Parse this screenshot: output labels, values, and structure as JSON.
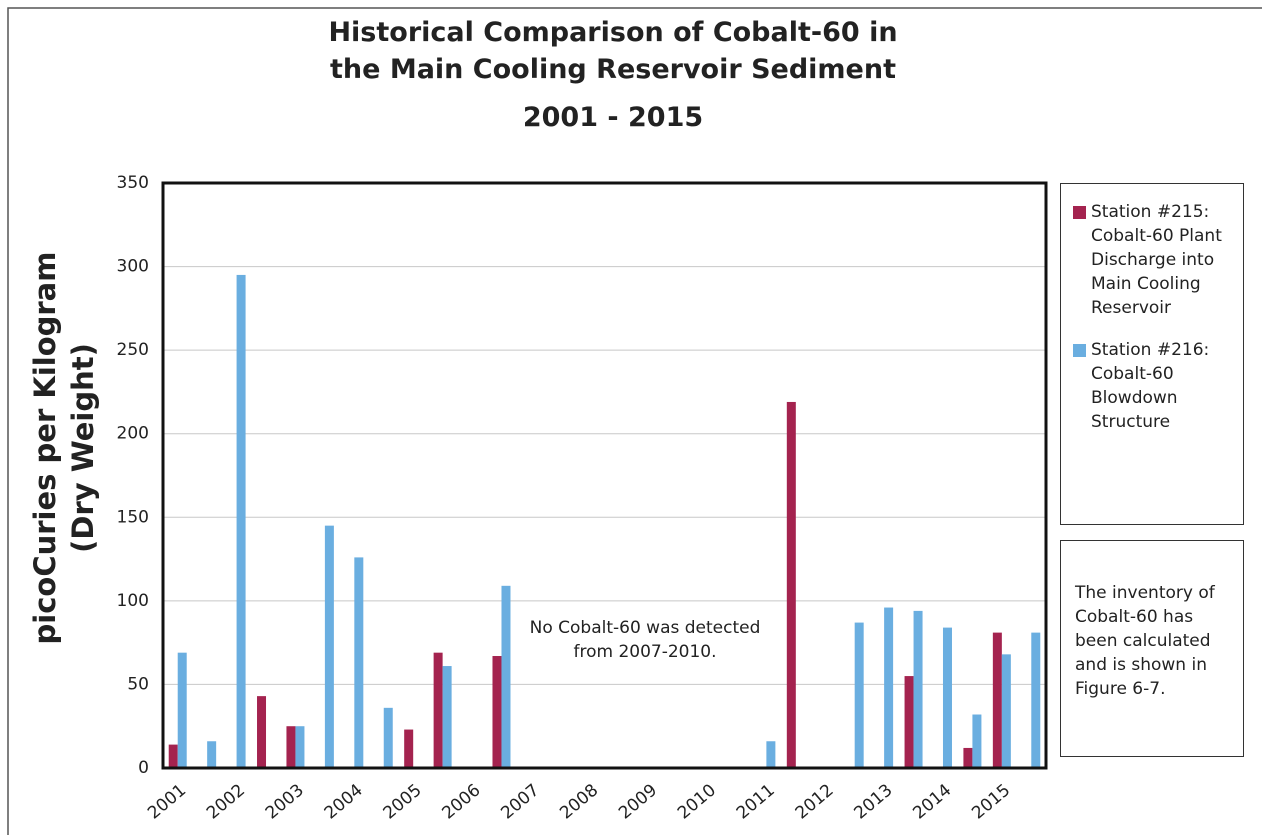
{
  "chart_data": {
    "type": "bar",
    "title": "Historical Comparison of Cobalt-60 in the Main Cooling Reservoir Sediment",
    "subtitle": "2001 - 2015",
    "y_label": "picoCuries per Kilogram (Dry Weight)",
    "annotation": "No Cobalt-60 was detected from 2007-2010.",
    "note": "The inventory of Cobalt-60 has been calculated and is shown in Figure 6-7.",
    "categories": [
      "2001",
      null,
      "2002",
      null,
      "2003",
      null,
      "2004",
      null,
      "2005",
      null,
      "2006",
      null,
      "2007",
      null,
      "2008",
      null,
      "2009",
      null,
      "2010",
      null,
      "2011",
      null,
      "2012",
      null,
      "2013",
      null,
      "2014",
      null,
      "2015",
      null
    ],
    "series": [
      {
        "name": "Station #215: Cobalt-60 Plant Discharge into Main Cooling Reservoir",
        "color": "#a4234f",
        "values": [
          14,
          null,
          null,
          43,
          25,
          null,
          null,
          null,
          23,
          69,
          null,
          67,
          null,
          null,
          null,
          null,
          null,
          null,
          null,
          null,
          null,
          219,
          null,
          null,
          null,
          55,
          null,
          12,
          81,
          null
        ]
      },
      {
        "name": "Station #216: Cobalt-60 Blowdown Structure",
        "color": "#6aaee0",
        "values": [
          69,
          16,
          295,
          null,
          25,
          145,
          126,
          36,
          null,
          61,
          null,
          109,
          null,
          null,
          null,
          null,
          null,
          null,
          null,
          null,
          16,
          null,
          null,
          87,
          96,
          94,
          84,
          32,
          68,
          81
        ]
      }
    ],
    "ylim": [
      0,
      350
    ],
    "yticks": [
      0,
      50,
      100,
      150,
      200,
      250,
      300,
      350
    ],
    "grid": true
  }
}
